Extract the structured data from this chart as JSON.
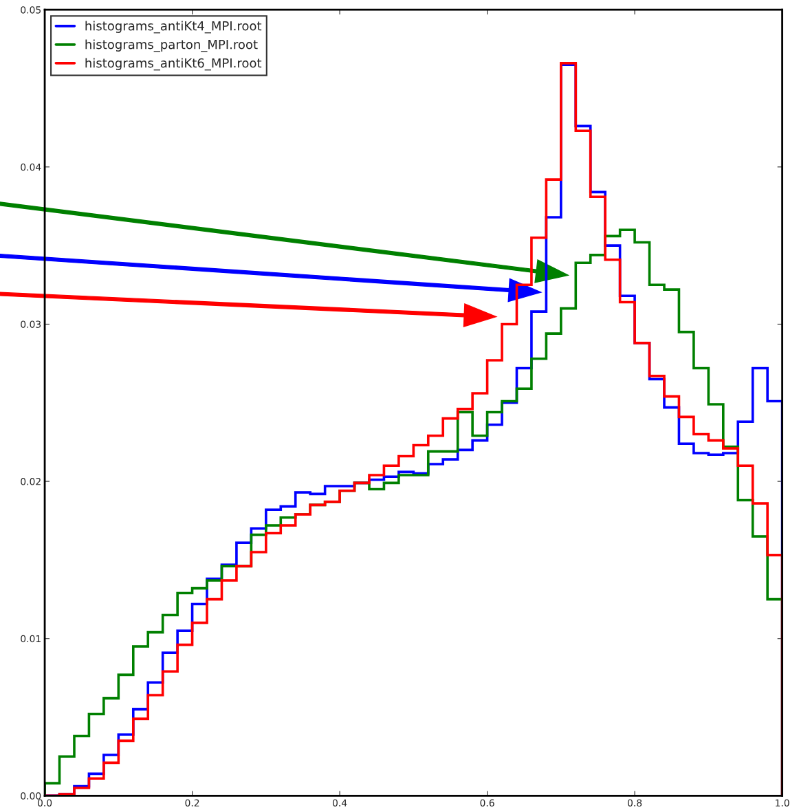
{
  "chart_data": {
    "type": "histogram",
    "bins": [
      0.0,
      0.02,
      0.04,
      0.06,
      0.08,
      0.1,
      0.12,
      0.14,
      0.16,
      0.18,
      0.2,
      0.22,
      0.24,
      0.26,
      0.28,
      0.3,
      0.32,
      0.34,
      0.36,
      0.38,
      0.4,
      0.42,
      0.44,
      0.46,
      0.48,
      0.5,
      0.52,
      0.54,
      0.56,
      0.58,
      0.6,
      0.62,
      0.64,
      0.66,
      0.68,
      0.7,
      0.72,
      0.74,
      0.76,
      0.78,
      0.8,
      0.82,
      0.84,
      0.86,
      0.88,
      0.9,
      0.92,
      0.94,
      0.96,
      0.98,
      1.0
    ],
    "series": [
      {
        "name": "histograms_antiKt4_MPI.root",
        "color": "#0000ff",
        "values": [
          0.0,
          0.0001,
          0.0006,
          0.0014,
          0.0026,
          0.0039,
          0.0055,
          0.0072,
          0.0091,
          0.0105,
          0.0122,
          0.0138,
          0.0147,
          0.0161,
          0.017,
          0.0182,
          0.0184,
          0.0193,
          0.0192,
          0.0197,
          0.0197,
          0.0199,
          0.0201,
          0.0203,
          0.0206,
          0.0205,
          0.0211,
          0.0214,
          0.022,
          0.0226,
          0.0236,
          0.025,
          0.0272,
          0.0308,
          0.0368,
          0.0465,
          0.0426,
          0.0384,
          0.035,
          0.0318,
          0.0288,
          0.0265,
          0.0247,
          0.0224,
          0.0218,
          0.0217,
          0.0218,
          0.0238,
          0.0272,
          0.0251
        ]
      },
      {
        "name": "histograms_parton_MPI.root",
        "color": "#008000",
        "values": [
          0.0008,
          0.0025,
          0.0038,
          0.0052,
          0.0062,
          0.0077,
          0.0095,
          0.0104,
          0.0115,
          0.0129,
          0.0132,
          0.0137,
          0.0146,
          0.0146,
          0.0166,
          0.0172,
          0.0177,
          0.0179,
          0.0185,
          0.0187,
          0.0194,
          0.0199,
          0.0195,
          0.0199,
          0.0204,
          0.0204,
          0.0219,
          0.0219,
          0.0244,
          0.0229,
          0.0244,
          0.0251,
          0.0259,
          0.0278,
          0.0294,
          0.031,
          0.0339,
          0.0344,
          0.0356,
          0.036,
          0.0352,
          0.0325,
          0.0322,
          0.0295,
          0.0272,
          0.0249,
          0.0222,
          0.0188,
          0.0165,
          0.0125
        ]
      },
      {
        "name": "histograms_antiKt6_MPI.root",
        "color": "#ff0000",
        "values": [
          0.0,
          0.0001,
          0.0005,
          0.0011,
          0.0021,
          0.0035,
          0.0049,
          0.0064,
          0.0079,
          0.0096,
          0.011,
          0.0125,
          0.0137,
          0.0146,
          0.0155,
          0.0167,
          0.0172,
          0.0179,
          0.0185,
          0.0187,
          0.0194,
          0.0199,
          0.0204,
          0.021,
          0.0216,
          0.0223,
          0.0229,
          0.024,
          0.0246,
          0.0256,
          0.0277,
          0.03,
          0.0325,
          0.0355,
          0.0392,
          0.0466,
          0.0423,
          0.0381,
          0.0341,
          0.0314,
          0.0288,
          0.0267,
          0.0254,
          0.0241,
          0.023,
          0.0226,
          0.0221,
          0.021,
          0.0186,
          0.0153
        ]
      }
    ],
    "xlim": [
      0.0,
      1.0
    ],
    "ylim": [
      0.0,
      0.05
    ],
    "xticks": [
      {
        "value": 0.0,
        "label": "0.0"
      },
      0.2,
      0.4,
      0.6,
      0.8,
      {
        "value": 1.0,
        "label": "1.0"
      }
    ],
    "yticks": [
      {
        "value": 0.0,
        "label": "0.00"
      },
      0.01,
      0.02,
      0.03,
      0.04,
      0.05
    ],
    "legend": "top left",
    "grid": false
  }
}
